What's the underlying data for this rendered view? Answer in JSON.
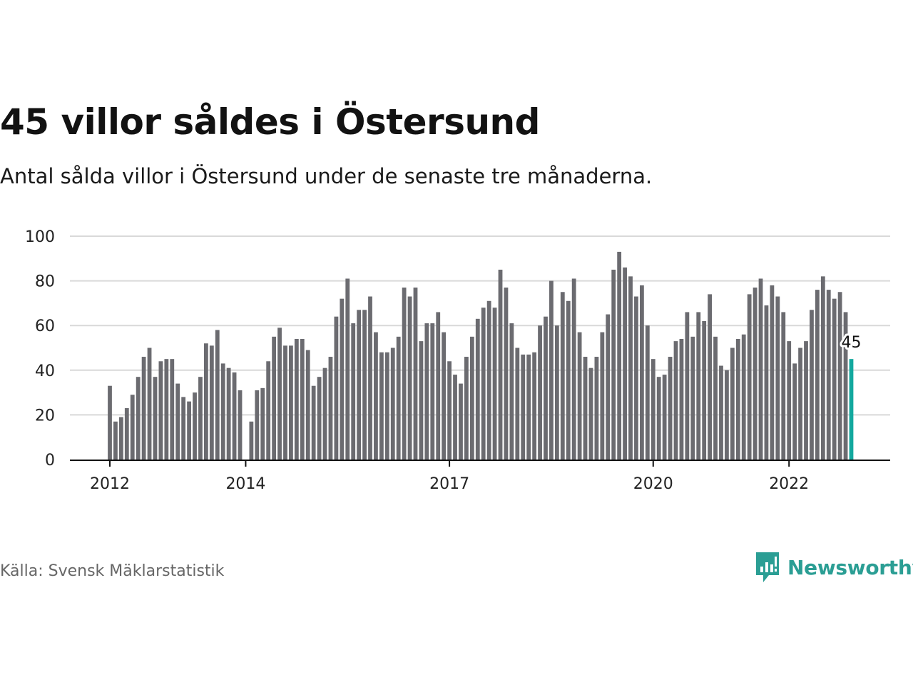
{
  "colors": {
    "bar": "#6b6b70",
    "highlight": "#13a89e",
    "grid": "#d9d9d9",
    "axis": "#111111",
    "brand": "#2b9e94"
  },
  "footer": {
    "source": "Källa: Svensk Mäklarstatistik",
    "brand": "Newsworthy",
    "brand_icon": "newsworthy-chart-bubble-icon"
  },
  "chart_data": {
    "type": "bar",
    "title": "45 villor såldes i Östersund",
    "subtitle": "Antal sålda villor i Östersund under de senaste tre månaderna.",
    "xlabel": "",
    "ylabel": "",
    "ylim": [
      0,
      100
    ],
    "yticks": [
      0,
      20,
      40,
      60,
      80,
      100
    ],
    "grid": true,
    "xticks": [
      {
        "label": "2012",
        "index": 0
      },
      {
        "label": "2014",
        "index": 24
      },
      {
        "label": "2017",
        "index": 60
      },
      {
        "label": "2020",
        "index": 96
      },
      {
        "label": "2022",
        "index": 120
      }
    ],
    "series": [
      {
        "values": [
          33,
          17,
          19,
          23,
          29,
          37,
          46,
          50,
          37,
          44,
          45,
          45,
          34,
          28,
          26,
          30,
          37,
          52,
          51,
          58,
          43,
          41,
          39,
          31,
          null,
          17,
          31,
          32,
          44,
          55,
          59,
          51,
          51,
          54,
          54,
          49,
          33,
          37,
          41,
          46,
          64,
          72,
          81,
          61,
          67,
          67,
          73,
          57,
          48,
          48,
          50,
          55,
          77,
          73,
          77,
          53,
          61,
          61,
          66,
          57,
          44,
          38,
          34,
          46,
          55,
          63,
          68,
          71,
          68,
          85,
          77,
          61,
          50,
          47,
          47,
          48,
          60,
          64,
          80,
          60,
          75,
          71,
          81,
          57,
          46,
          41,
          46,
          57,
          65,
          85,
          93,
          86,
          82,
          73,
          78,
          60,
          45,
          37,
          38,
          46,
          53,
          54,
          66,
          55,
          66,
          62,
          74,
          55,
          42,
          40,
          50,
          54,
          56,
          74,
          77,
          81,
          69,
          78,
          73,
          66,
          53,
          43,
          50,
          53,
          67,
          76,
          82,
          76,
          72,
          75,
          66,
          45
        ]
      }
    ],
    "highlight": {
      "index": 131,
      "value": 45,
      "label": "45"
    }
  }
}
